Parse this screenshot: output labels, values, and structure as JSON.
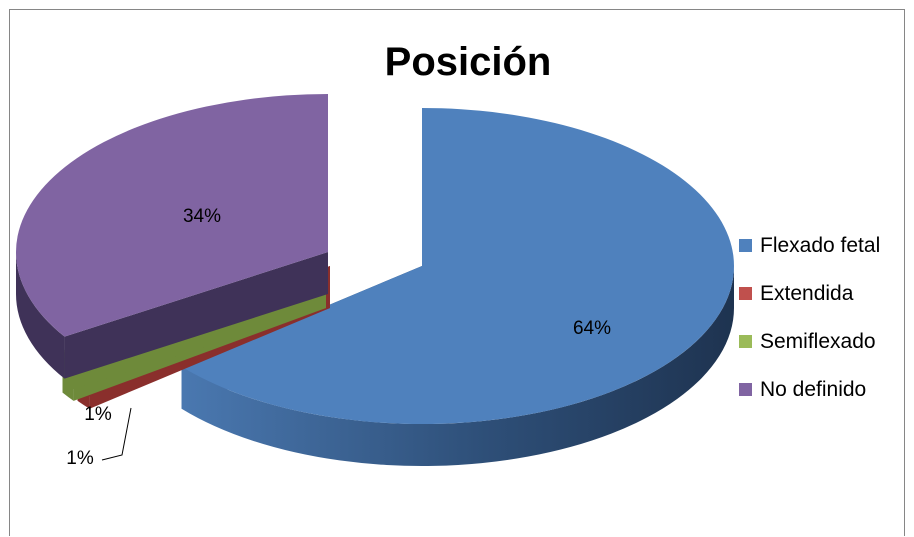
{
  "chart_data": {
    "type": "pie",
    "title": "Posición",
    "categories": [
      "Flexado fetal",
      "Extendida",
      "Semiflexado",
      "No definido"
    ],
    "values": [
      64,
      1,
      1,
      34
    ],
    "data_labels": [
      "64%",
      "1%",
      "1%",
      "34%"
    ],
    "colors": [
      "#4F81BD",
      "#C0504D",
      "#9BBB59",
      "#8064A2"
    ],
    "legend_position": "right",
    "style": "3d-exploded"
  }
}
